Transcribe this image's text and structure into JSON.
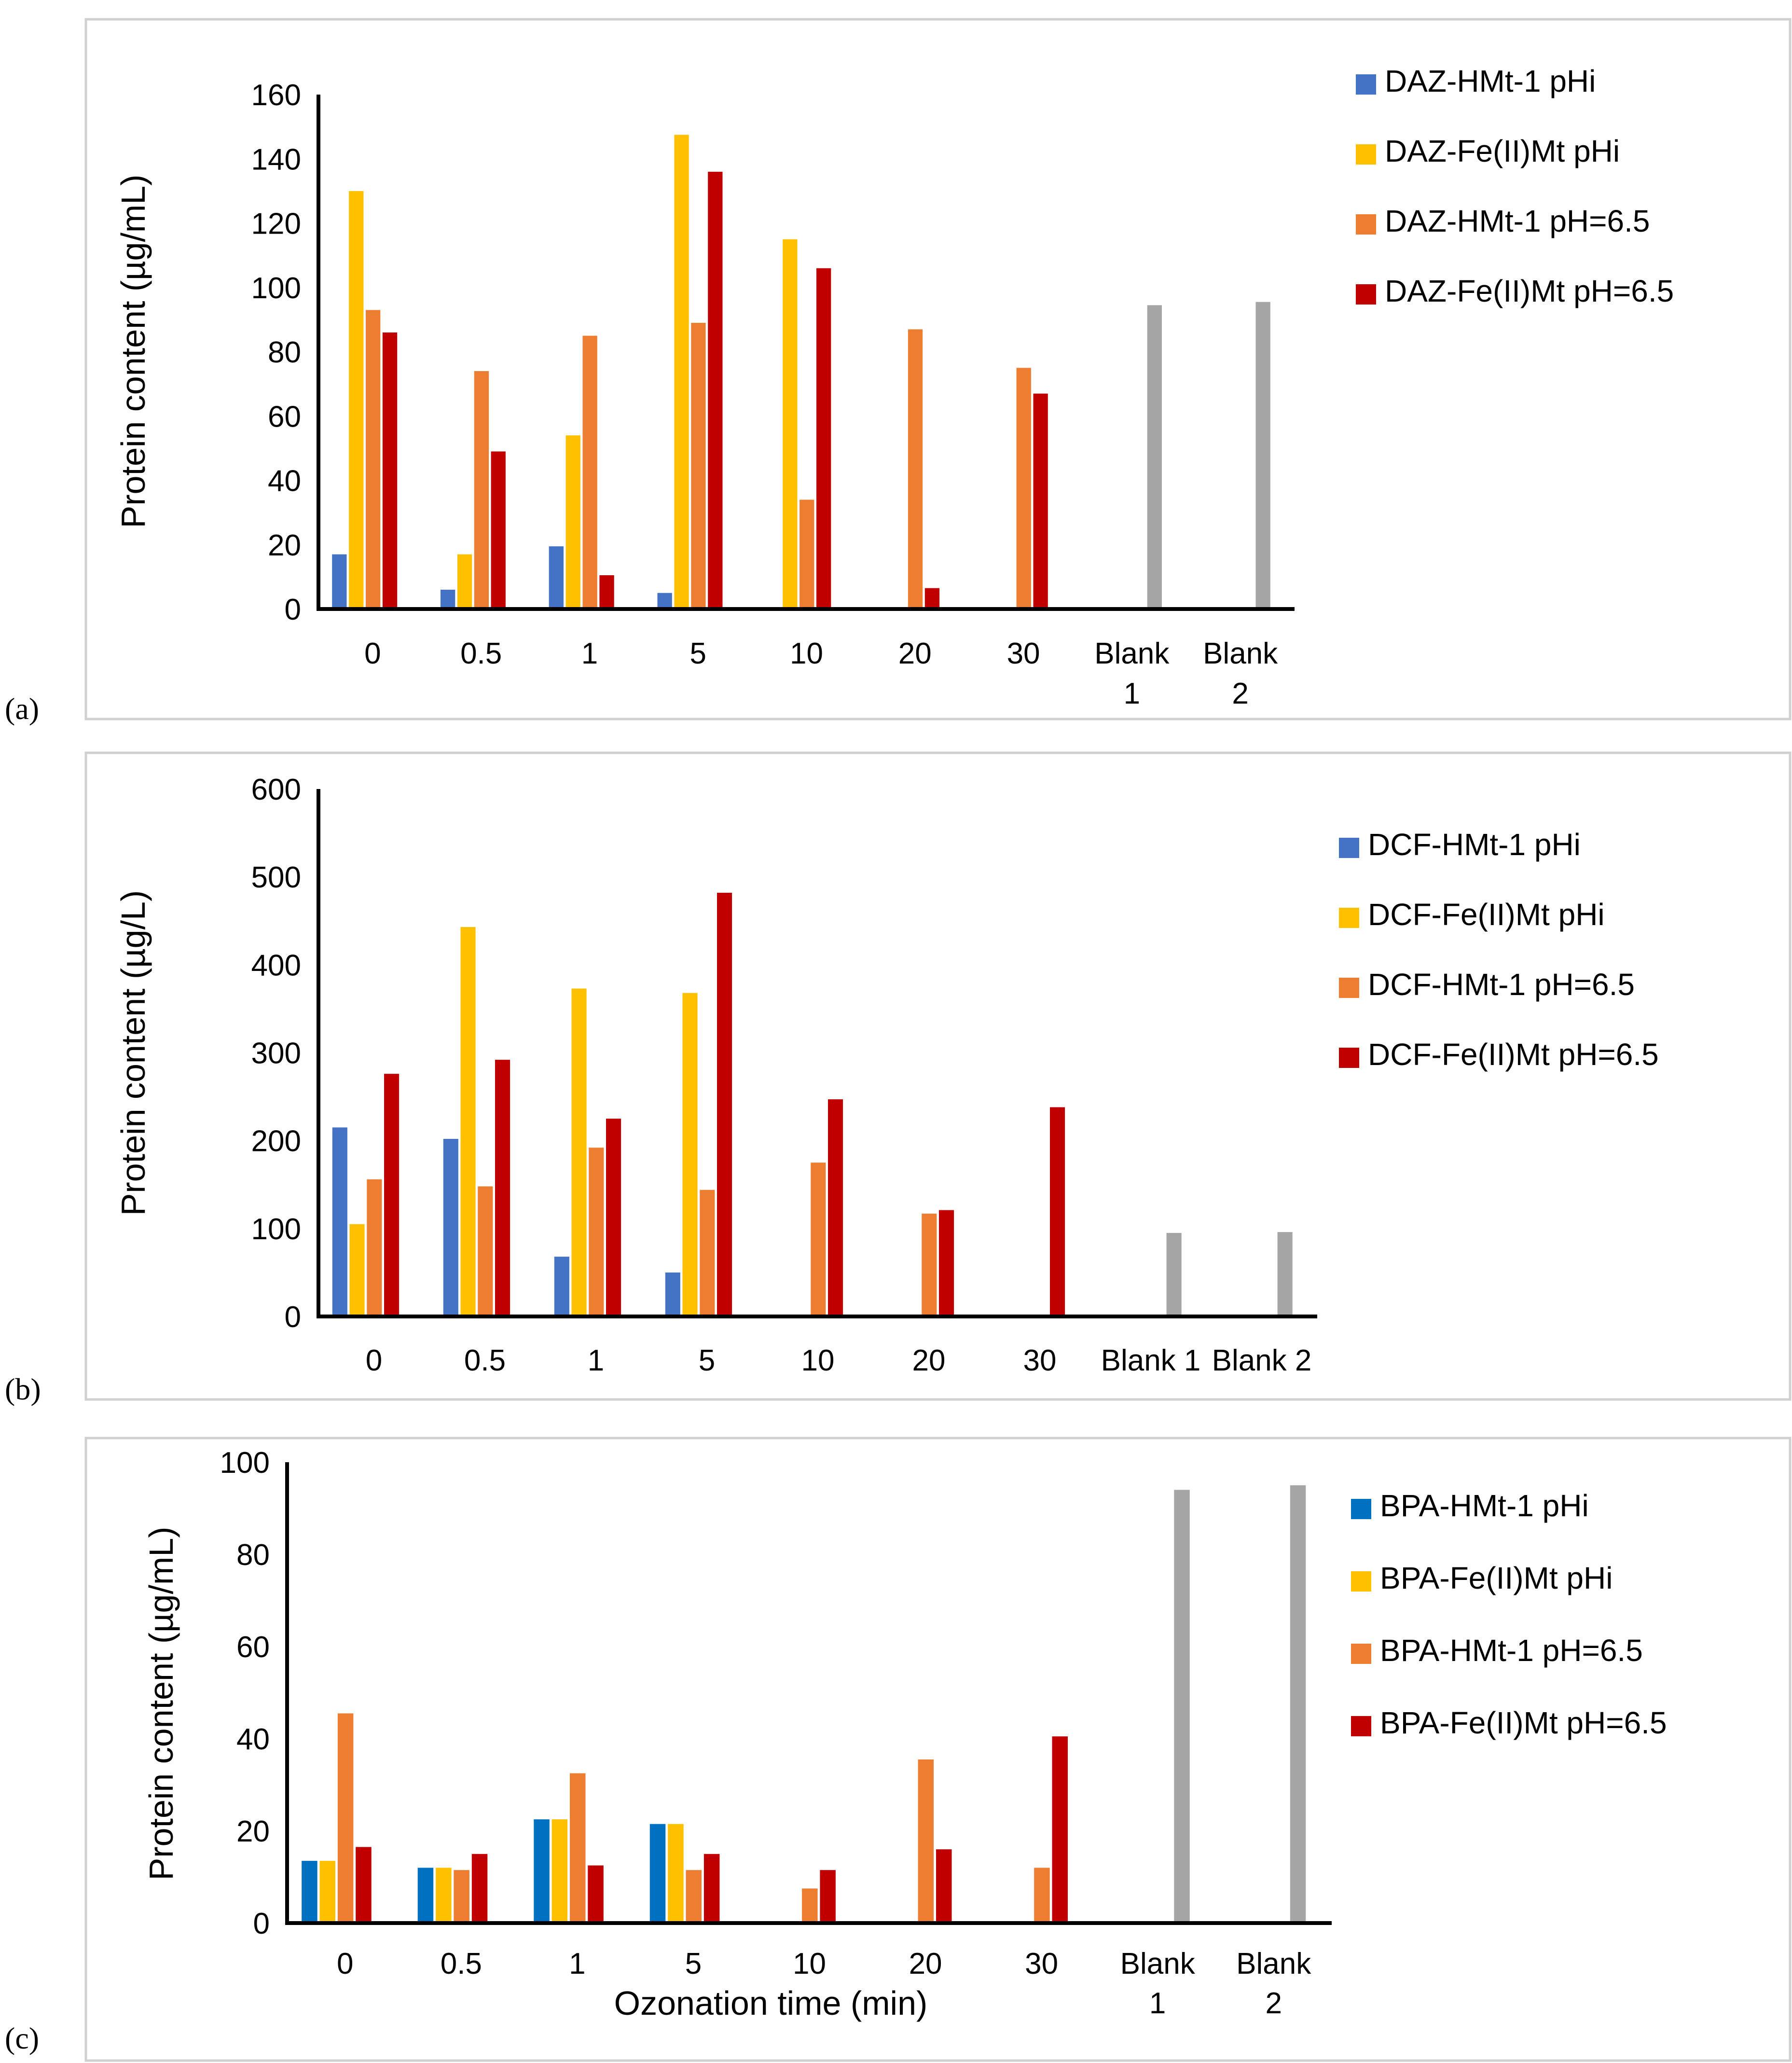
{
  "chart_data": [
    {
      "panel_label": "(a)",
      "type": "bar",
      "ylabel": "Protein content (µg/mL)",
      "xlabel": "",
      "ylim": [
        0,
        160
      ],
      "yticks": [
        "0",
        "20",
        "40",
        "60",
        "80",
        "100",
        "120",
        "140",
        "160"
      ],
      "categories": [
        [
          "0"
        ],
        [
          "0.5"
        ],
        [
          "1"
        ],
        [
          "5"
        ],
        [
          "10"
        ],
        [
          "20"
        ],
        [
          "30"
        ],
        [
          "Blank",
          "1"
        ],
        [
          "Blank",
          "2"
        ]
      ],
      "legend_position": "right",
      "series": [
        {
          "name": "DAZ-HMt-1 pHi",
          "color": "#4472C4",
          "values": [
            17,
            6,
            19.5,
            5,
            0,
            0,
            0,
            0,
            0
          ]
        },
        {
          "name": "DAZ-Fe(II)Mt pHi",
          "color": "#FFC000",
          "values": [
            130,
            17,
            54,
            147.5,
            115,
            0,
            0,
            0,
            0
          ]
        },
        {
          "name": "DAZ-HMt-1 pH=6.5",
          "color": "#ED7D31",
          "values": [
            93,
            74,
            85,
            89,
            34,
            87,
            75,
            0,
            0
          ]
        },
        {
          "name": "DAZ-Fe(II)Mt pH=6.5",
          "color": "#C00000",
          "values": [
            86,
            49,
            10.5,
            136,
            106,
            6.5,
            67,
            0,
            0
          ]
        },
        {
          "name": "Blank",
          "color": "#A5A5A5",
          "legend": false,
          "values": [
            0,
            0,
            0,
            0,
            0,
            0,
            0,
            94.5,
            95.5
          ]
        }
      ]
    },
    {
      "panel_label": "(b)",
      "type": "bar",
      "ylabel": "Protein content (µg/L)",
      "xlabel": "",
      "ylim": [
        0,
        600
      ],
      "yticks": [
        "0",
        "100",
        "200",
        "300",
        "400",
        "500",
        "600"
      ],
      "categories": [
        [
          "0"
        ],
        [
          "0.5"
        ],
        [
          "1"
        ],
        [
          "5"
        ],
        [
          "10"
        ],
        [
          "20"
        ],
        [
          "30"
        ],
        [
          "Blank 1"
        ],
        [
          "Blank 2"
        ]
      ],
      "legend_position": "right",
      "series": [
        {
          "name": "DCF-HMt-1 pHi",
          "color": "#4472C4",
          "values": [
            215,
            202,
            68,
            50,
            0,
            0,
            0,
            0,
            0
          ]
        },
        {
          "name": "DCF-Fe(II)Mt pHi",
          "color": "#FFC000",
          "values": [
            105,
            443,
            373,
            368,
            0,
            0,
            0,
            0,
            0
          ]
        },
        {
          "name": "DCF-HMt-1 pH=6.5",
          "color": "#ED7D31",
          "values": [
            156,
            148,
            192,
            144,
            175,
            117,
            0,
            0,
            0
          ]
        },
        {
          "name": "DCF-Fe(II)Mt pH=6.5",
          "color": "#C00000",
          "values": [
            276,
            292,
            225,
            482,
            247,
            121,
            238,
            0,
            0
          ]
        },
        {
          "name": "Blank",
          "color": "#A5A5A5",
          "legend": false,
          "values": [
            0,
            0,
            0,
            0,
            0,
            0,
            0,
            95,
            96
          ]
        }
      ]
    },
    {
      "panel_label": "(c)",
      "type": "bar",
      "ylabel": "Protein content (µg/mL)",
      "xlabel": "Ozonation time (min)",
      "ylim": [
        0,
        100
      ],
      "yticks": [
        "0",
        "20",
        "40",
        "60",
        "80",
        "100"
      ],
      "categories": [
        [
          "0"
        ],
        [
          "0.5"
        ],
        [
          "1"
        ],
        [
          "5"
        ],
        [
          "10"
        ],
        [
          "20"
        ],
        [
          "30"
        ],
        [
          "Blank",
          "1"
        ],
        [
          "Blank",
          "2"
        ]
      ],
      "legend_position": "right",
      "series": [
        {
          "name": "BPA-HMt-1 pHi",
          "color": "#0070C0",
          "values": [
            13.5,
            12,
            22.5,
            21.5,
            0,
            0,
            0,
            0,
            0
          ]
        },
        {
          "name": "BPA-Fe(II)Mt pHi",
          "color": "#FFC000",
          "values": [
            13.5,
            12,
            22.5,
            21.5,
            0,
            0,
            0,
            0,
            0
          ]
        },
        {
          "name": "BPA-HMt-1 pH=6.5",
          "color": "#ED7D31",
          "values": [
            45.5,
            11.5,
            32.5,
            11.5,
            7.5,
            35.5,
            12,
            0,
            0
          ]
        },
        {
          "name": "BPA-Fe(II)Mt pH=6.5",
          "color": "#C00000",
          "values": [
            16.5,
            15,
            12.5,
            15,
            11.5,
            16,
            40.5,
            0,
            0
          ]
        },
        {
          "name": "Blank",
          "color": "#A5A5A5",
          "legend": false,
          "values": [
            0,
            0,
            0,
            0,
            0,
            0,
            0,
            94,
            95
          ]
        }
      ]
    }
  ]
}
